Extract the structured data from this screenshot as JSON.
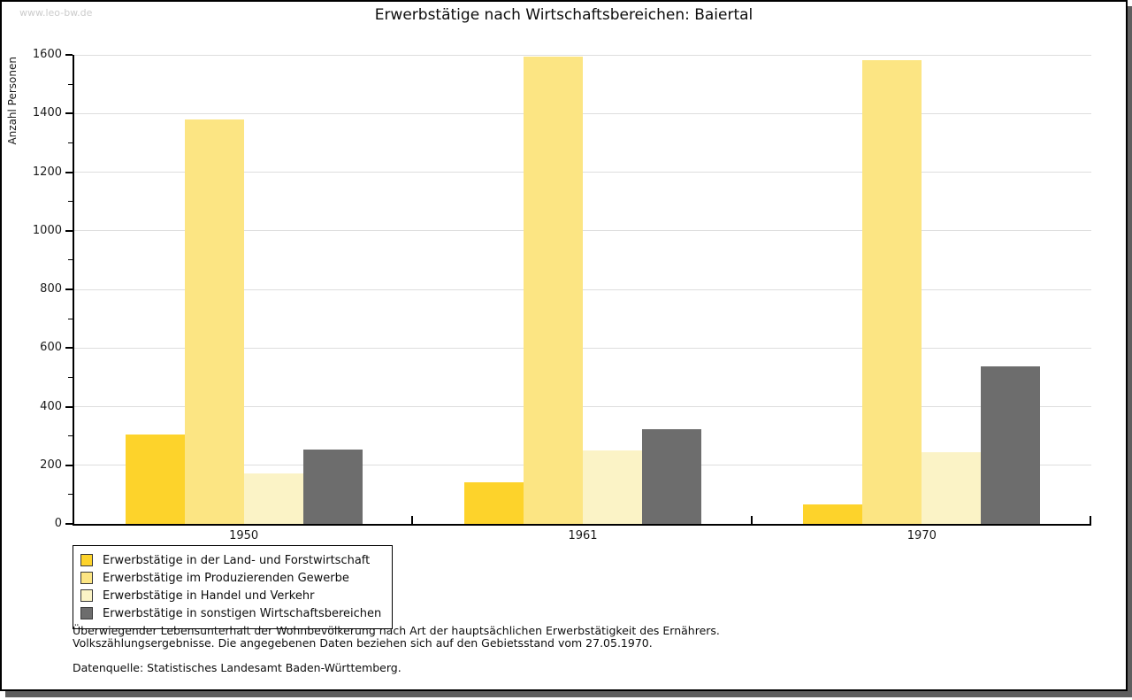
{
  "watermark": "www.leo-bw.de",
  "chart_data": {
    "type": "bar",
    "title": "Erwerbstätige nach Wirtschaftsbereichen: Baiertal",
    "ylabel": "Anzahl Personen",
    "xlabel": "",
    "categories": [
      "1950",
      "1961",
      "1970"
    ],
    "series": [
      {
        "name": "Erwerbstätige in der Land- und Forstwirtschaft",
        "color": "#FDD32B",
        "values": [
          305,
          142,
          66
        ]
      },
      {
        "name": "Erwerbstätige im Produzierenden Gewerbe",
        "color": "#FCE583",
        "values": [
          1380,
          1595,
          1582
        ]
      },
      {
        "name": "Erwerbstätige in Handel und Verkehr",
        "color": "#FBF3C6",
        "values": [
          172,
          250,
          245
        ]
      },
      {
        "name": "Erwerbstätige in sonstigen Wirtschaftsbereichen",
        "color": "#6D6D6D",
        "values": [
          254,
          322,
          536
        ]
      }
    ],
    "ylim": [
      0,
      1600
    ],
    "y_major_step": 200,
    "y_minor_step": 100,
    "grid": true,
    "legend_position": "bottom-left",
    "axis_color": "#000000",
    "gridline_color": "#dedede"
  },
  "footer": {
    "line1": "Überwiegender Lebensunterhalt der Wohnbevölkerung nach Art der hauptsächlichen Erwerbstätigkeit des Ernährers.",
    "line2": "Volkszählungsergebnisse. Die angegebenen Daten beziehen sich auf den Gebietsstand vom 27.05.1970.",
    "source": "Datenquelle: Statistisches Landesamt Baden-Württemberg."
  }
}
